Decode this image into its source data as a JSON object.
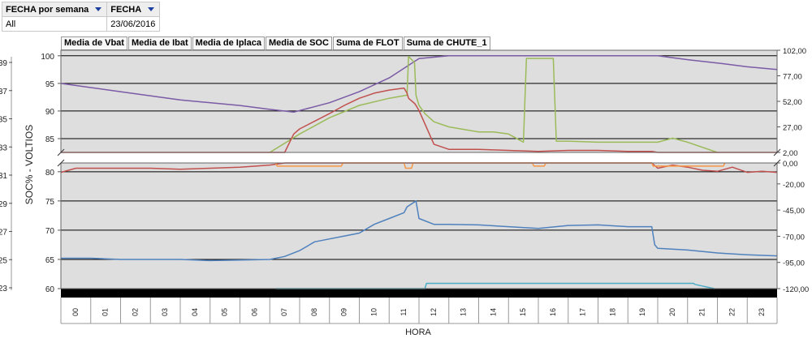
{
  "filters": {
    "headers": [
      "FECHA por semana",
      "FECHA"
    ],
    "values": [
      "All",
      "23/06/2016"
    ]
  },
  "legend_buttons": [
    "Media de Vbat",
    "Media de Ibat",
    "Media de Iplaca",
    "Media de SOC",
    "Suma de FLOT",
    "Suma de CHUTE_1"
  ],
  "chart_data": {
    "type": "line",
    "xlabel": "HORA",
    "ylabel": "SOC% - VOLTIOS",
    "x_categories": [
      "00",
      "01",
      "02",
      "03",
      "04",
      "05",
      "06",
      "07",
      "08",
      "09",
      "10",
      "11",
      "12",
      "13",
      "14",
      "15",
      "16",
      "17",
      "18",
      "19",
      "20",
      "21",
      "22",
      "23"
    ],
    "outer_left_axis": {
      "ticks": [
        39,
        37,
        35,
        33,
        31,
        29,
        27,
        25,
        23
      ]
    },
    "upper_panel": {
      "left_ticks": [
        100,
        95,
        90,
        85
      ],
      "right_ticks": [
        "102,00",
        "77,00",
        "52,00",
        "27,00",
        "2,00"
      ],
      "left_range": [
        82.5,
        101
      ],
      "right_range": [
        2,
        102
      ]
    },
    "lower_panel": {
      "left_ticks": [
        80,
        75,
        70,
        65,
        60
      ],
      "right_ticks": [
        "0,00",
        "-20,00",
        "-45,00",
        "-70,00",
        "-95,00",
        "-120,00"
      ],
      "left_range": [
        60,
        81.5
      ],
      "right_range": [
        -120,
        0
      ]
    },
    "colors": {
      "SOC": "#7b5aa6",
      "Iplaca": "#9bbb59",
      "Ibat": "#c0504d",
      "Vbat": "#4f81bd",
      "FLOT": "#f79646",
      "CHUTE_1": "#4bacc6",
      "plot_bg": "#dedede"
    },
    "series": [
      {
        "name": "Media de SOC",
        "key": "SOC",
        "panel": "upper",
        "x": [
          0,
          2,
          4,
          6,
          7,
          7.8,
          9,
          10,
          11,
          12,
          13,
          14,
          15,
          16,
          17,
          18,
          19,
          20,
          21,
          22,
          23,
          24
        ],
        "values": [
          95,
          93.5,
          92,
          91,
          90.3,
          89.8,
          91.5,
          93.5,
          96,
          99.5,
          100,
          100,
          100,
          100,
          100,
          100,
          100,
          100,
          99.3,
          98.7,
          98,
          97.5
        ]
      },
      {
        "name": "Media de Iplaca",
        "key": "Iplaca",
        "panel": "upper",
        "x": [
          7,
          8,
          9,
          10,
          11,
          11.6,
          11.65,
          11.85,
          11.9,
          12,
          12.2,
          12.5,
          13,
          14,
          14.5,
          15,
          15.5,
          15.6,
          16,
          16.5,
          16.6,
          17,
          18,
          19,
          20,
          20.5,
          21,
          22
        ],
        "values": [
          0,
          20,
          36,
          48,
          55,
          58,
          96,
          90,
          58,
          48,
          40,
          32,
          27,
          22,
          22,
          20,
          12,
          94,
          94,
          94,
          13,
          13,
          12,
          12,
          12,
          16,
          12,
          2
        ]
      },
      {
        "name": "Media de Ibat",
        "key": "Ibat",
        "panel": "both",
        "x": [
          0,
          0.5,
          2,
          3,
          4,
          5,
          6,
          7,
          7.5,
          7.8,
          8,
          9,
          9.5,
          10,
          10.5,
          11,
          11.5,
          11.6,
          11.65,
          11.85,
          11.9,
          12,
          12.5,
          13,
          14,
          15,
          16,
          17,
          18,
          19,
          19.8,
          20,
          20.5,
          21,
          21.5,
          22,
          22.5,
          23,
          23.5,
          24
        ],
        "values": [
          -9,
          -5,
          -5,
          -5,
          -6,
          -5,
          -4,
          -2,
          2,
          20,
          25,
          40,
          48,
          55,
          60,
          63,
          65,
          60,
          55,
          50,
          48,
          43,
          10,
          5,
          5,
          4,
          3,
          4,
          4,
          3,
          3,
          -5,
          -2,
          -4,
          -7,
          -8,
          -4,
          -9,
          -8,
          -9
        ]
      },
      {
        "name": "Media de Vbat",
        "key": "Vbat",
        "panel": "lower",
        "x": [
          0,
          1,
          2,
          3,
          4,
          5,
          6,
          7,
          7.5,
          8,
          8.5,
          9,
          9.5,
          10,
          10.5,
          11,
          11.5,
          11.6,
          11.9,
          12,
          12.5,
          13,
          14,
          15,
          16,
          17,
          18,
          19,
          19.8,
          19.9,
          20,
          21,
          22,
          23,
          24
        ],
        "values": [
          65.2,
          65.2,
          65,
          65,
          65,
          64.8,
          64.9,
          65,
          65.5,
          66.5,
          68,
          68.5,
          69,
          69.5,
          71,
          72,
          73,
          74,
          75,
          72,
          71,
          71,
          70.9,
          70.6,
          70.3,
          70.8,
          70.9,
          70.6,
          70.6,
          67.5,
          66.9,
          66.6,
          66.1,
          65.8,
          65.6
        ]
      },
      {
        "name": "Suma de FLOT",
        "key": "FLOT",
        "panel": "lower",
        "x": [
          7.2,
          7.25,
          9.4,
          9.45,
          9.8,
          11.5,
          11.55,
          11.75,
          11.8,
          15.8,
          15.85,
          16.2,
          16.25,
          19.8,
          19.85,
          22.2,
          22.25
        ],
        "values": [
          0,
          -3,
          -3,
          0,
          0,
          0,
          -5,
          -5,
          0,
          0,
          -3,
          -3,
          0,
          0,
          -3,
          -3,
          0
        ]
      },
      {
        "name": "Suma de CHUTE_1",
        "key": "CHUTE_1",
        "panel": "lower",
        "x": [
          7.2,
          9.4,
          12.2,
          12.25,
          21.2,
          21.25,
          21.9
        ],
        "values": [
          -120,
          -120,
          -120,
          -115,
          -115,
          -116,
          -120
        ]
      }
    ]
  }
}
